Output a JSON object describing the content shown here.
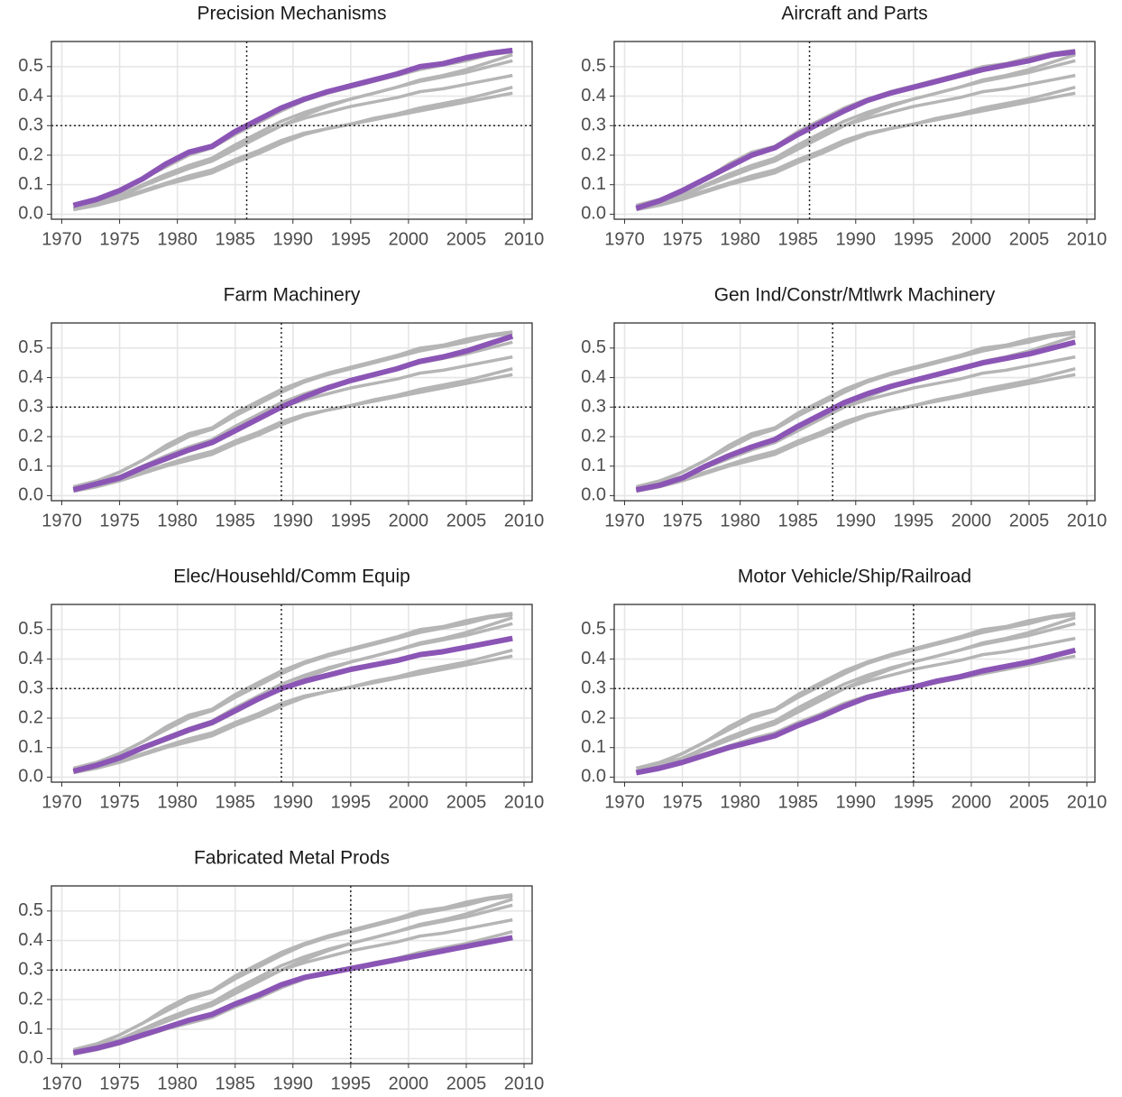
{
  "chart_data": {
    "type": "line",
    "x": [
      1971,
      1973,
      1975,
      1977,
      1979,
      1981,
      1983,
      1985,
      1987,
      1989,
      1991,
      1993,
      1995,
      1997,
      1999,
      2001,
      2003,
      2005,
      2007,
      2009
    ],
    "xlim": [
      1969.1,
      2010.7
    ],
    "xticks": [
      1970,
      1975,
      1980,
      1985,
      1990,
      1995,
      2000,
      2005,
      2010
    ],
    "ylim": [
      -0.017,
      0.585
    ],
    "yticks": [
      {
        "value": 0,
        "label": "0.0"
      },
      0.1,
      0.2,
      0.3,
      0.4,
      0.5
    ],
    "grid": true,
    "threshold": 0.3,
    "line_color": "#b5b5b5",
    "highlight_color": "#8b55b5",
    "series": [
      {
        "name": "Precision Mechanisms",
        "threshold_year": 1986,
        "values": [
          0.03,
          0.05,
          0.08,
          0.12,
          0.17,
          0.21,
          0.23,
          0.28,
          0.32,
          0.36,
          0.39,
          0.415,
          0.435,
          0.455,
          0.475,
          0.5,
          0.51,
          0.53,
          0.545,
          0.555
        ]
      },
      {
        "name": "Aircraft and Parts",
        "threshold_year": 1986,
        "values": [
          0.02,
          0.045,
          0.08,
          0.12,
          0.16,
          0.2,
          0.225,
          0.27,
          0.31,
          0.35,
          0.385,
          0.41,
          0.43,
          0.45,
          0.47,
          0.49,
          0.505,
          0.52,
          0.54,
          0.55
        ]
      },
      {
        "name": "Farm Machinery",
        "threshold_year": 1989,
        "values": [
          0.02,
          0.04,
          0.06,
          0.095,
          0.125,
          0.155,
          0.18,
          0.22,
          0.26,
          0.3,
          0.335,
          0.365,
          0.39,
          0.41,
          0.43,
          0.455,
          0.47,
          0.49,
          0.515,
          0.54
        ]
      },
      {
        "name": "Gen Ind/Constr/Mtlwrk Machinery",
        "threshold_year": 1988,
        "values": [
          0.02,
          0.035,
          0.06,
          0.1,
          0.135,
          0.165,
          0.19,
          0.235,
          0.275,
          0.315,
          0.345,
          0.37,
          0.39,
          0.41,
          0.43,
          0.45,
          0.465,
          0.48,
          0.5,
          0.52
        ]
      },
      {
        "name": "Elec/Househld/Comm Equip",
        "threshold_year": 1989,
        "values": [
          0.02,
          0.04,
          0.065,
          0.1,
          0.13,
          0.16,
          0.185,
          0.225,
          0.265,
          0.3,
          0.325,
          0.345,
          0.365,
          0.38,
          0.395,
          0.415,
          0.425,
          0.44,
          0.455,
          0.47
        ]
      },
      {
        "name": "Motor Vehicle/Ship/Railroad",
        "threshold_year": 1995,
        "values": [
          0.015,
          0.03,
          0.05,
          0.075,
          0.1,
          0.12,
          0.14,
          0.175,
          0.205,
          0.24,
          0.27,
          0.29,
          0.305,
          0.325,
          0.34,
          0.36,
          0.375,
          0.39,
          0.41,
          0.43
        ]
      },
      {
        "name": "Fabricated Metal Prods",
        "threshold_year": 1995,
        "values": [
          0.02,
          0.035,
          0.055,
          0.08,
          0.105,
          0.13,
          0.15,
          0.185,
          0.215,
          0.25,
          0.275,
          0.29,
          0.305,
          0.32,
          0.335,
          0.35,
          0.365,
          0.38,
          0.395,
          0.41
        ]
      }
    ]
  }
}
